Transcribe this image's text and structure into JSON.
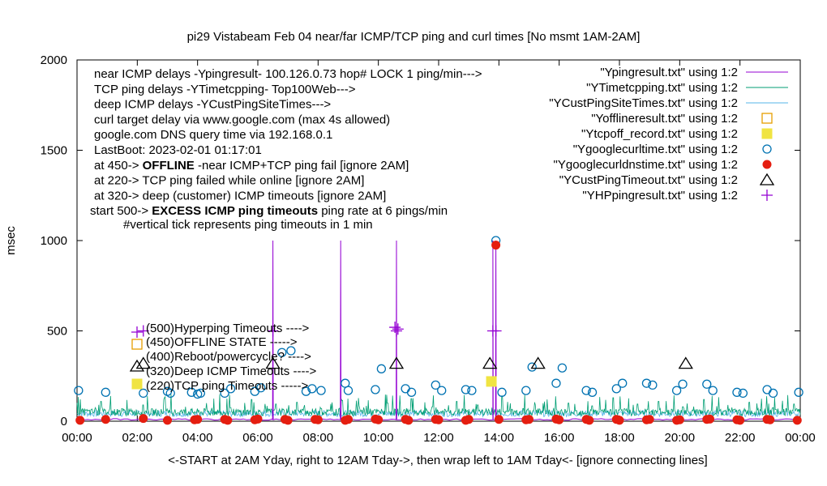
{
  "chart_data": {
    "type": "scatter",
    "title": "pi29 Vistabeam Feb 04  near/far ICMP/TCP ping and curl times [No msmt 1AM-2AM]",
    "xlabel": "<-START at 2AM Yday, right to 12AM Tday->, then wrap left to 1AM Tday<- [ignore connecting lines]",
    "ylabel": "msec",
    "xlim": [
      0,
      24
    ],
    "ylim": [
      0,
      2000
    ],
    "x_ticks": [
      "00:00",
      "02:00",
      "04:00",
      "06:00",
      "08:00",
      "10:00",
      "12:00",
      "14:00",
      "16:00",
      "18:00",
      "20:00",
      "22:00",
      "00:00"
    ],
    "y_ticks": [
      "0",
      "500",
      "1000",
      "1500",
      "2000"
    ],
    "grid": false,
    "legend_position": "top-right",
    "info_lines": [
      "near ICMP delays -Ypingresult- 100.126.0.73 hop# LOCK 1 ping/min--->",
      "TCP ping delays -YTimetcpping- Top100Web--->",
      "deep ICMP delays -YCustPingSiteTimes--->",
      "curl target delay via www.google.com (max 4s allowed)",
      "google.com DNS query time via 192.168.0.1",
      "LastBoot: 2023-02-01 01:17:01"
    ],
    "status_lines": [
      {
        "prefix": "at 450-> ",
        "bold": "OFFLINE",
        "rest": " -near ICMP+TCP ping fail [ignore 2AM]"
      },
      {
        "prefix": "at 220-> TCP ping failed while online [ignore 2AM]",
        "bold": "",
        "rest": ""
      },
      {
        "prefix": "at 320-> deep (customer) ICMP timeouts [ignore 2AM]",
        "bold": "",
        "rest": ""
      },
      {
        "prefix": "start 500-> ",
        "bold": "EXCESS ICMP ping timeouts",
        "rest": " ping rate at 6 pings/min"
      }
    ],
    "tick_note": "#vertical tick represents ping timeouts in 1 min",
    "key_notes": [
      "(500)Hyperping Timeouts ---->",
      "(450)OFFLINE STATE ----->",
      "(400)Reboot/powercycle? ---->",
      "(320)Deep ICMP Timeouts ---->",
      "(220)TCP ping Timeouts ----->"
    ],
    "series": [
      {
        "name": "\"Ypingresult.txt\" using 1:2",
        "style": "line",
        "color": "#9400d3",
        "spikes": [
          [
            6.5,
            1000
          ],
          [
            8.75,
            1000
          ],
          [
            10.6,
            1000
          ],
          [
            13.8,
            1000
          ],
          [
            13.9,
            1000
          ]
        ]
      },
      {
        "name": "\"YTimetcpping.txt\" using 1:2",
        "style": "line",
        "color": "#009e73",
        "spike_times": [
          0.3,
          0.8,
          1.5,
          2.2,
          2.9,
          3.6,
          4.3,
          5.1,
          5.8,
          6.6,
          7.3,
          8.1,
          8.8,
          9.6,
          10.3,
          11.1,
          11.8,
          12.6,
          13.3,
          14.1,
          14.8,
          15.6,
          16.3,
          17.1,
          17.8,
          18.6,
          19.3,
          20.1,
          20.8,
          21.6,
          22.3,
          23.1,
          23.8
        ],
        "spike_values": [
          60,
          110,
          70,
          90,
          130,
          80,
          100,
          75,
          120,
          95,
          105,
          70,
          115,
          85,
          100,
          125,
          80,
          110,
          90,
          140,
          70,
          120,
          100,
          85,
          130,
          95,
          110,
          80,
          120,
          90,
          105,
          75,
          95
        ]
      },
      {
        "name": "\"YCustPingSiteTimes.txt\" using 1:2",
        "style": "line",
        "color": "#56b4e9",
        "base": 25
      },
      {
        "name": "\"Yofflineresult.txt\" using 1:2",
        "style": "square-open",
        "color": "#e69f00",
        "points": []
      },
      {
        "name": "\"Ytcpoff_record.txt\" using 1:2",
        "style": "square-filled",
        "color": "#f0e442",
        "points": [
          [
            13.75,
            220
          ]
        ]
      },
      {
        "name": "\"Ygooglecurltime.txt\" using 1:2",
        "style": "circle-open",
        "color": "#0072b2",
        "points": [
          [
            0.05,
            170
          ],
          [
            0.95,
            160
          ],
          [
            2.2,
            155
          ],
          [
            3.0,
            165
          ],
          [
            3.1,
            155
          ],
          [
            3.8,
            160
          ],
          [
            4.0,
            150
          ],
          [
            4.1,
            155
          ],
          [
            4.9,
            155
          ],
          [
            5.1,
            180
          ],
          [
            5.9,
            165
          ],
          [
            6.1,
            185
          ],
          [
            6.8,
            380
          ],
          [
            7.1,
            390
          ],
          [
            7.6,
            165
          ],
          [
            7.8,
            180
          ],
          [
            8.1,
            170
          ],
          [
            8.9,
            210
          ],
          [
            9.0,
            170
          ],
          [
            9.9,
            175
          ],
          [
            10.1,
            290
          ],
          [
            10.9,
            180
          ],
          [
            11.1,
            160
          ],
          [
            11.9,
            200
          ],
          [
            12.1,
            170
          ],
          [
            12.9,
            175
          ],
          [
            13.1,
            170
          ],
          [
            13.9,
            1000
          ],
          [
            14.1,
            160
          ],
          [
            14.9,
            170
          ],
          [
            15.1,
            300
          ],
          [
            15.9,
            210
          ],
          [
            16.1,
            295
          ],
          [
            16.9,
            170
          ],
          [
            17.1,
            160
          ],
          [
            17.9,
            180
          ],
          [
            18.1,
            210
          ],
          [
            18.9,
            210
          ],
          [
            19.1,
            200
          ],
          [
            19.9,
            170
          ],
          [
            20.1,
            205
          ],
          [
            20.9,
            205
          ],
          [
            21.1,
            170
          ],
          [
            21.9,
            160
          ],
          [
            22.1,
            155
          ],
          [
            22.9,
            175
          ],
          [
            23.1,
            155
          ],
          [
            23.95,
            160
          ]
        ]
      },
      {
        "name": "\"Ygooglecurldnstime.txt\" using 1:2",
        "style": "circle-filled",
        "color": "#e51e10",
        "points": [
          [
            0.1,
            5
          ],
          [
            0.95,
            10
          ],
          [
            2.2,
            15
          ],
          [
            3.0,
            5
          ],
          [
            3.9,
            8
          ],
          [
            4.0,
            10
          ],
          [
            4.9,
            10
          ],
          [
            5.0,
            5
          ],
          [
            5.9,
            8
          ],
          [
            6.0,
            12
          ],
          [
            6.9,
            10
          ],
          [
            7.0,
            5
          ],
          [
            7.9,
            10
          ],
          [
            8.0,
            8
          ],
          [
            8.9,
            5
          ],
          [
            9.0,
            10
          ],
          [
            9.9,
            12
          ],
          [
            10.0,
            8
          ],
          [
            10.9,
            10
          ],
          [
            11.0,
            5
          ],
          [
            11.9,
            10
          ],
          [
            12.0,
            8
          ],
          [
            12.9,
            5
          ],
          [
            13.0,
            10
          ],
          [
            13.9,
            975
          ],
          [
            14.0,
            10
          ],
          [
            14.9,
            8
          ],
          [
            15.0,
            10
          ],
          [
            15.9,
            12
          ],
          [
            16.0,
            8
          ],
          [
            16.9,
            10
          ],
          [
            17.0,
            5
          ],
          [
            17.9,
            10
          ],
          [
            18.0,
            5
          ],
          [
            18.9,
            8
          ],
          [
            19.0,
            10
          ],
          [
            19.9,
            5
          ],
          [
            20.0,
            8
          ],
          [
            20.9,
            10
          ],
          [
            21.0,
            12
          ],
          [
            21.9,
            8
          ],
          [
            22.0,
            5
          ],
          [
            22.9,
            10
          ],
          [
            23.0,
            8
          ],
          [
            23.9,
            5
          ]
        ]
      },
      {
        "name": "\"YCustPingTimeout.txt\" using 1:2",
        "style": "triangle-open",
        "color": "#000000",
        "points": [
          [
            2.2,
            320
          ],
          [
            6.5,
            320
          ],
          [
            10.6,
            320
          ],
          [
            13.7,
            320
          ],
          [
            15.3,
            320
          ],
          [
            20.2,
            320
          ]
        ]
      },
      {
        "name": "\"YHPpingresult.txt\" using 1:2",
        "style": "plus",
        "color": "#9400d3",
        "points": [
          [
            2.2,
            500
          ],
          [
            6.5,
            500
          ],
          [
            10.55,
            520
          ],
          [
            10.6,
            500
          ],
          [
            10.65,
            510
          ],
          [
            13.8,
            500
          ],
          [
            13.9,
            500
          ]
        ]
      }
    ]
  }
}
